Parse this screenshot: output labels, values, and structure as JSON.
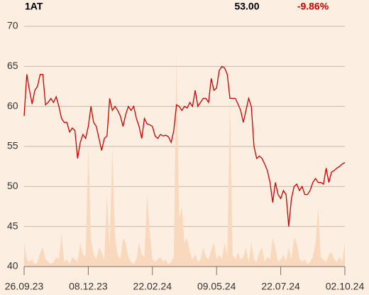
{
  "chart_data": {
    "type": "line",
    "title": "1AT",
    "annotations": [
      "53.00",
      "-9.86%"
    ],
    "annotation_colors": [
      "#000000",
      "#cc0000"
    ],
    "categories": [
      "26.09.23",
      null,
      null,
      null,
      null,
      null,
      null,
      null,
      null,
      null,
      null,
      null,
      null,
      null,
      null,
      null,
      null,
      null,
      null,
      null,
      null,
      null,
      null,
      null,
      "08.12.23",
      null,
      null,
      null,
      null,
      null,
      null,
      null,
      null,
      null,
      null,
      null,
      null,
      null,
      null,
      null,
      null,
      null,
      null,
      null,
      null,
      null,
      null,
      null,
      "22.02.24",
      null,
      null,
      null,
      null,
      null,
      null,
      null,
      null,
      null,
      null,
      null,
      null,
      null,
      null,
      null,
      null,
      null,
      null,
      null,
      null,
      null,
      null,
      null,
      "09.05.24",
      null,
      null,
      null,
      null,
      null,
      null,
      null,
      null,
      null,
      null,
      null,
      null,
      null,
      null,
      null,
      null,
      null,
      null,
      null,
      null,
      null,
      null,
      null,
      "22.07.24",
      null,
      null,
      null,
      null,
      null,
      null,
      null,
      null,
      null,
      null,
      null,
      null,
      null,
      null,
      null,
      null,
      null,
      null,
      null,
      null,
      null,
      null,
      null,
      "02.10.24"
    ],
    "series": [
      {
        "color": "#cc0000",
        "values": [
          58.8,
          64,
          62,
          60.3,
          62,
          62.5,
          64,
          64,
          60.2,
          60.5,
          61,
          60.5,
          61.2,
          60,
          58.5,
          58,
          58,
          56.8,
          57.3,
          57,
          53.5,
          55.5,
          56.5,
          56,
          57.5,
          60,
          58,
          57.5,
          56,
          54.5,
          56,
          56.3,
          61,
          59.5,
          60,
          59.5,
          58.8,
          57.5,
          59,
          60,
          59.5,
          60,
          58.5,
          57.5,
          56,
          58.5,
          57.8,
          57.7,
          57.5,
          56.3,
          56,
          56.5,
          56.3,
          56.4,
          56.2,
          55.5,
          57,
          60.2,
          60,
          59.5,
          60,
          59.8,
          60.5,
          60,
          62,
          60,
          60.5,
          61,
          61,
          60.5,
          63.5,
          62,
          62.3,
          64.5,
          65,
          64.8,
          64,
          61,
          61,
          61,
          60.3,
          59.5,
          58,
          59.5,
          61,
          60,
          55,
          53.5,
          53.8,
          53.5,
          52.8,
          52,
          50.5,
          48,
          50.5,
          49,
          48.5,
          49.5,
          49,
          45,
          48.5,
          50,
          50.3,
          49.5,
          50,
          49,
          49,
          49.5,
          50.5,
          51,
          50.5,
          50.5,
          50.3,
          52.3,
          50.5,
          51.8,
          52,
          52.3,
          52.5,
          52.8,
          53
        ]
      },
      {
        "color": "#f9d9bd",
        "axis": "y2",
        "values": [
          10,
          3,
          2,
          3,
          1,
          2,
          6,
          8,
          3,
          2,
          1,
          2,
          4,
          3,
          14,
          2,
          3,
          1,
          4,
          3,
          2,
          10,
          5,
          4,
          50,
          12,
          5,
          3,
          8,
          6,
          3,
          30,
          8,
          50,
          12,
          5,
          3,
          12,
          10,
          4,
          2,
          1,
          3,
          10,
          5,
          4,
          30,
          15,
          3,
          2,
          3,
          4,
          2,
          3,
          1,
          2,
          4,
          88,
          20,
          25,
          10,
          12,
          6,
          3,
          5,
          2,
          3,
          8,
          4,
          3,
          7,
          10,
          3,
          5,
          3,
          10,
          4,
          70,
          5,
          3,
          6,
          3,
          4,
          8,
          2,
          10,
          3,
          2,
          6,
          8,
          2,
          4,
          3,
          12,
          8,
          2,
          3,
          5,
          2,
          8,
          3,
          12,
          10,
          3,
          2,
          3,
          1,
          2,
          4,
          10,
          25,
          4,
          3,
          2,
          5,
          6,
          3,
          2,
          4,
          2,
          10
        ]
      }
    ],
    "ylim": [
      40,
      70
    ],
    "yticks": [
      40,
      45,
      50,
      55,
      60,
      65,
      70
    ],
    "y2lim": [
      0,
      100
    ],
    "grid": true
  }
}
